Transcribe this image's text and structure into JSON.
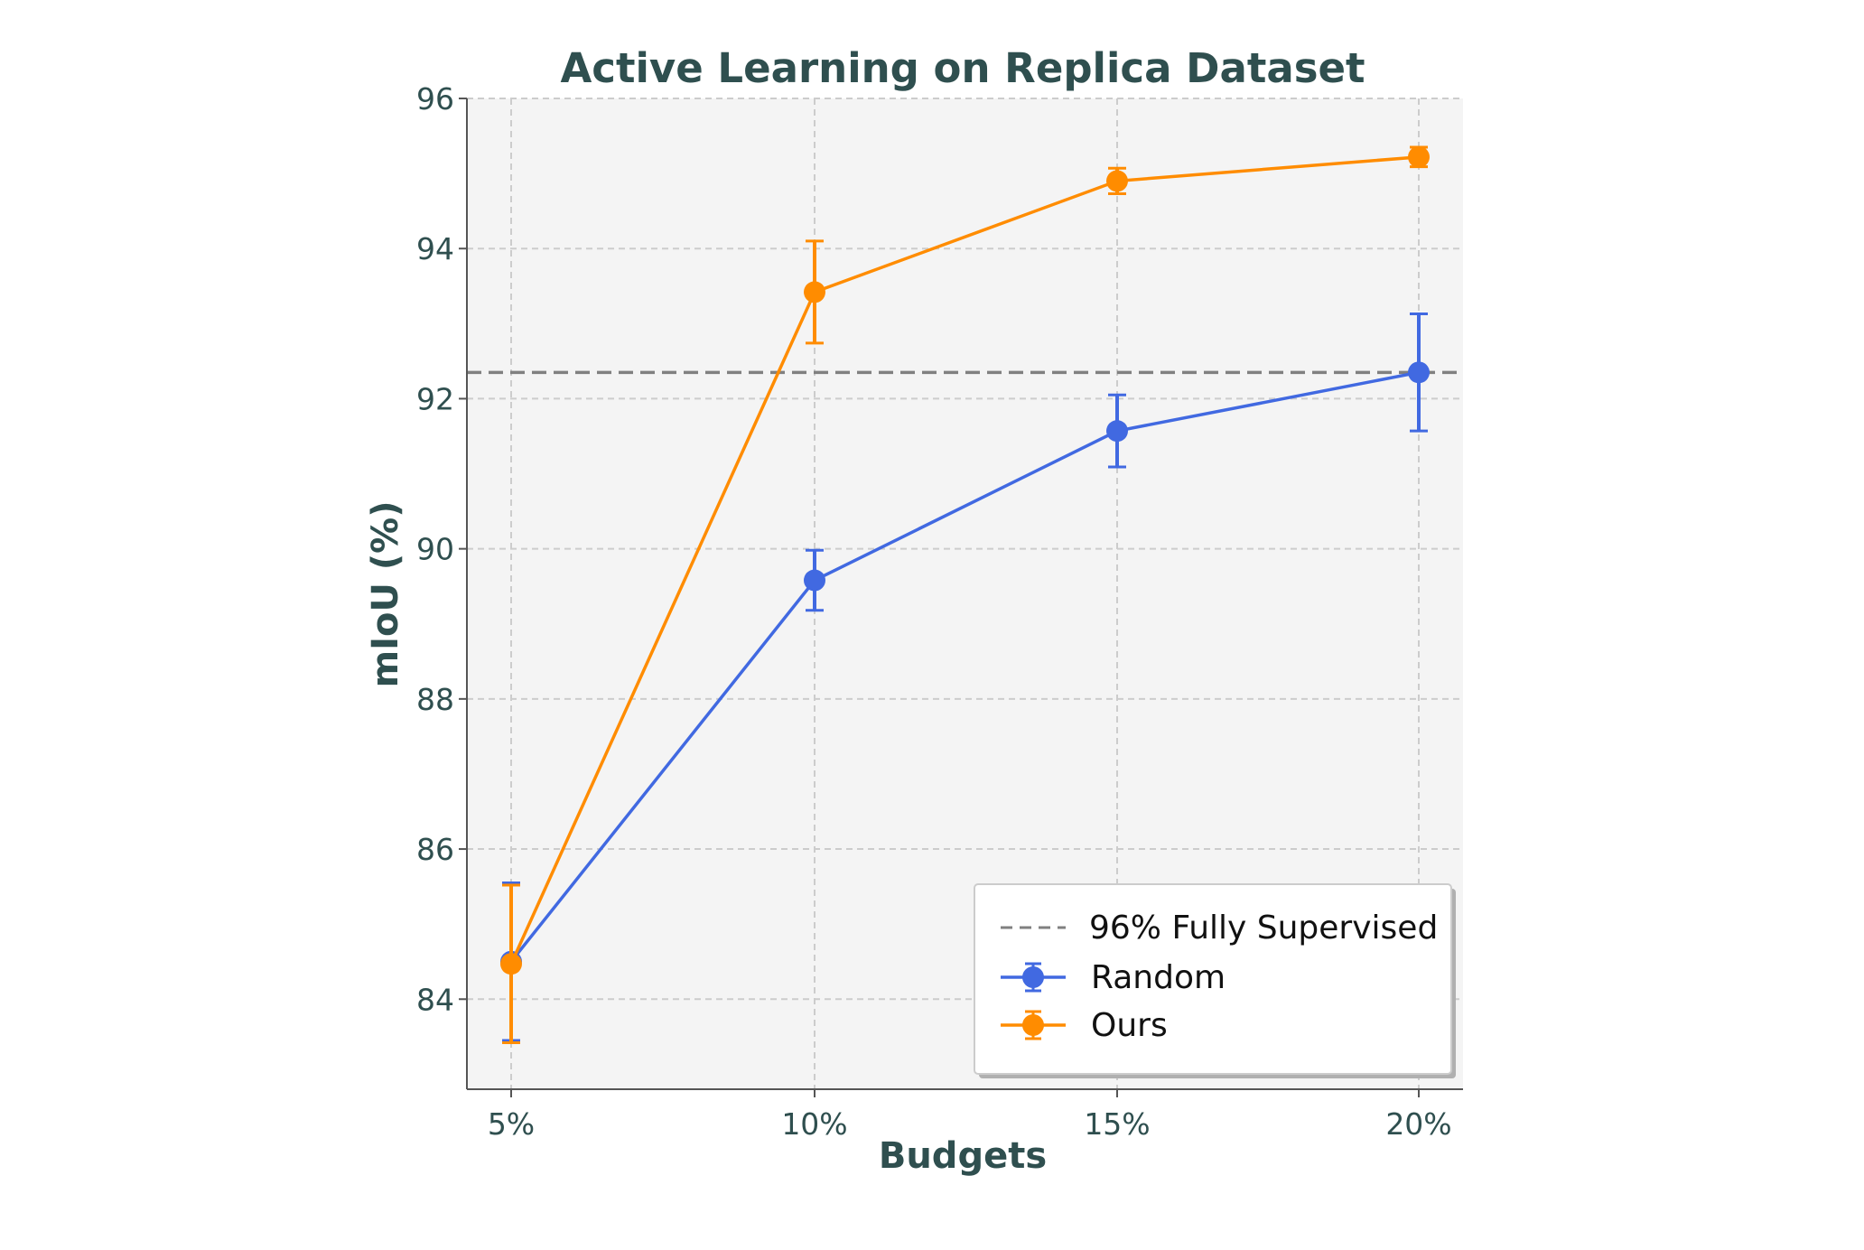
{
  "chart_data": {
    "type": "line",
    "title": "Active Learning on Replica Dataset",
    "xlabel": "Budgets",
    "ylabel": "mIoU (%)",
    "categories": [
      "5%",
      "10%",
      "15%",
      "20%"
    ],
    "ylim": [
      82.8,
      96
    ],
    "yticks": [
      84,
      86,
      88,
      90,
      92,
      94,
      96
    ],
    "grid": true,
    "legend_position": "lower-right",
    "reference_line": {
      "name": "96% Fully Supervised",
      "value": 92.35,
      "color": "#808080"
    },
    "series": [
      {
        "name": "Random",
        "color": "#4169e1",
        "values": [
          84.5,
          89.58,
          91.57,
          92.35
        ],
        "errors": [
          1.05,
          0.4,
          0.48,
          0.78
        ]
      },
      {
        "name": "Ours",
        "color": "#ff8c00",
        "values": [
          84.47,
          93.42,
          94.9,
          95.22
        ],
        "errors": [
          1.05,
          0.68,
          0.17,
          0.13
        ]
      }
    ]
  }
}
